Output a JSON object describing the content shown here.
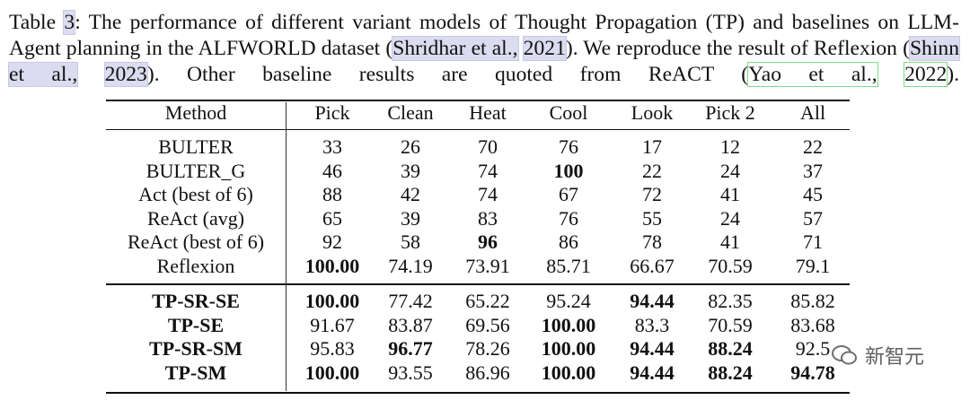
{
  "caption": {
    "table_word": "Table",
    "table_number": "3",
    "text1": ": The performance of different variant models of Thought Propagation (TP) and baselines on LLM-Agent planning in the ALFWORLD dataset (",
    "cite1_name": "Shridhar et al.,",
    "cite1_year": "2021",
    "text2": "). We reproduce the result of Reflexion (",
    "cite2_name": "Shinn et al.,",
    "cite2_year": "2023",
    "text3": "). Other baseline results are quoted from ReACT (",
    "cite3_name": "Yao et al.,",
    "cite3_year": "2022",
    "text4": ")."
  },
  "table": {
    "header": [
      "Method",
      "Pick",
      "Clean",
      "Heat",
      "Cool",
      "Look",
      "Pick 2",
      "All"
    ],
    "groups": [
      {
        "method_bold": false,
        "rows": [
          {
            "method": "BULTER",
            "values": [
              "33",
              "26",
              "70",
              "76",
              "17",
              "12",
              "22"
            ],
            "bold": []
          },
          {
            "method": "BULTER_G",
            "values": [
              "46",
              "39",
              "74",
              "100",
              "22",
              "24",
              "37"
            ],
            "bold": [
              3
            ]
          },
          {
            "method": "Act (best of 6)",
            "values": [
              "88",
              "42",
              "74",
              "67",
              "72",
              "41",
              "45"
            ],
            "bold": []
          },
          {
            "method": "ReAct (avg)",
            "values": [
              "65",
              "39",
              "83",
              "76",
              "55",
              "24",
              "57"
            ],
            "bold": []
          },
          {
            "method": "ReAct (best of 6)",
            "values": [
              "92",
              "58",
              "96",
              "86",
              "78",
              "41",
              "71"
            ],
            "bold": [
              2
            ]
          },
          {
            "method": "Reflexion",
            "values": [
              "100.00",
              "74.19",
              "73.91",
              "85.71",
              "66.67",
              "70.59",
              "79.1"
            ],
            "bold": [
              0
            ]
          }
        ]
      },
      {
        "method_bold": true,
        "rows": [
          {
            "method": "TP-SR-SE",
            "values": [
              "100.00",
              "77.42",
              "65.22",
              "95.24",
              "94.44",
              "82.35",
              "85.82"
            ],
            "bold": [
              0,
              4
            ]
          },
          {
            "method": "TP-SE",
            "values": [
              "91.67",
              "83.87",
              "69.56",
              "100.00",
              "83.3",
              "70.59",
              "83.68"
            ],
            "bold": [
              3
            ]
          },
          {
            "method": "TP-SR-SM",
            "values": [
              "95.83",
              "96.77",
              "78.26",
              "100.00",
              "94.44",
              "88.24",
              "92.5"
            ],
            "bold": [
              1,
              3,
              4,
              5
            ]
          },
          {
            "method": "TP-SM",
            "values": [
              "100.00",
              "93.55",
              "86.96",
              "100.00",
              "94.44",
              "88.24",
              "94.78"
            ],
            "bold": [
              0,
              3,
              4,
              5,
              6
            ]
          }
        ]
      }
    ]
  },
  "watermark": "新智元"
}
